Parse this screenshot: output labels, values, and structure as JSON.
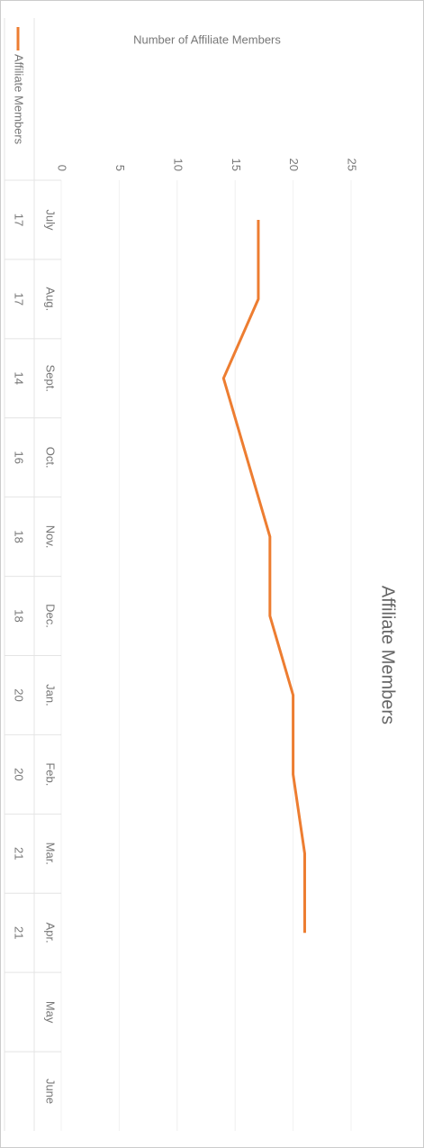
{
  "chart_data": {
    "type": "line",
    "title": "Affiliate Members",
    "y_label": "Number of Affiliate Members",
    "categories": [
      "July",
      "Aug.",
      "Sept.",
      "Oct.",
      "Nov.",
      "Dec.",
      "Jan.",
      "Feb.",
      "Mar.",
      "Apr.",
      "May",
      "June"
    ],
    "series": [
      {
        "name": "Affiliate Members",
        "color": "#ed7d31",
        "values": [
          17,
          17,
          14,
          16,
          18,
          18,
          20,
          20,
          21,
          21,
          null,
          null
        ]
      }
    ],
    "ylim": [
      0,
      25
    ],
    "yticks": [
      0,
      5,
      10,
      15,
      20,
      25
    ],
    "grid": true
  }
}
